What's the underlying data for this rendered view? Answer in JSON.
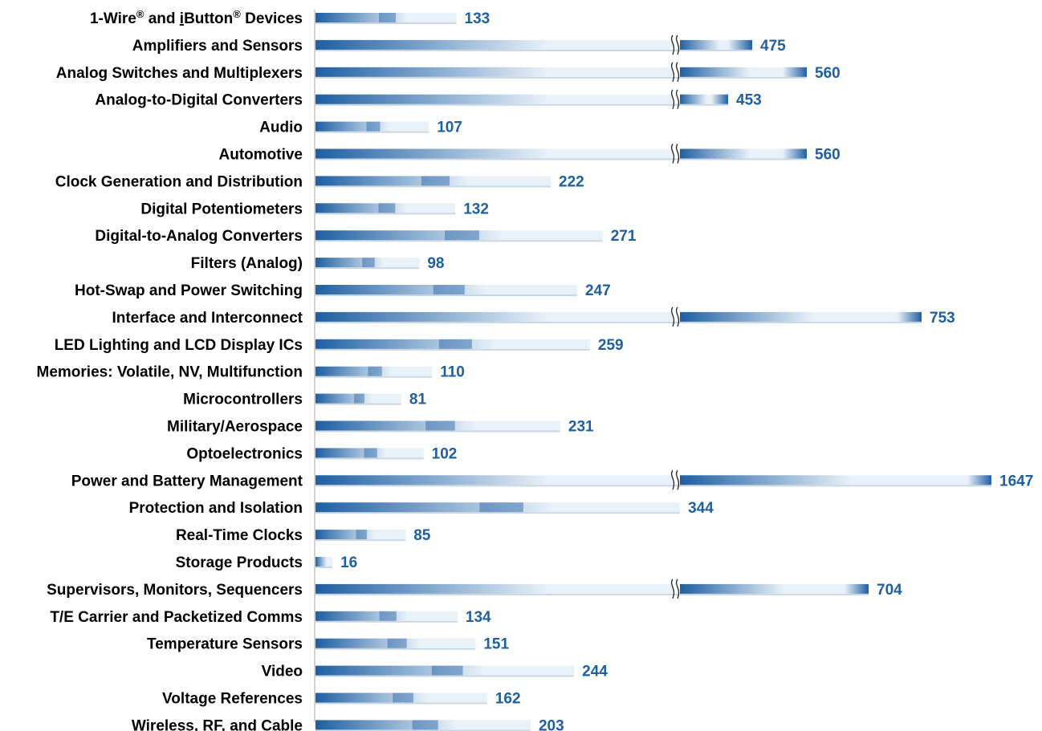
{
  "colors": {
    "bar_dark": "#1e5fa2",
    "bar_light": "#e9f1f9",
    "value_text": "#1d5fa0",
    "label_text": "#000000",
    "axis": "#aaaaaa"
  },
  "chart_data": {
    "type": "bar",
    "orientation": "horizontal",
    "axis_break": true,
    "axis_break_marker": "double-wavy-lines",
    "grid": false,
    "legend": "none",
    "categories": [
      {
        "label": "1-Wire",
        "label_suffix": " Devices",
        "label_mid": " and ",
        "label_brand2_initial": "i",
        "label_brand2_rest": "Button",
        "reg_mark": "®"
      },
      {
        "label": "Amplifiers and Sensors"
      },
      {
        "label": "Analog Switches and Multiplexers"
      },
      {
        "label": "Analog-to-Digital Converters"
      },
      {
        "label": "Audio"
      },
      {
        "label": "Automotive"
      },
      {
        "label": "Clock Generation and Distribution"
      },
      {
        "label": "Digital Potentiometers"
      },
      {
        "label": "Digital-to-Analog Converters"
      },
      {
        "label": "Filters (Analog)"
      },
      {
        "label": "Hot-Swap and Power Switching"
      },
      {
        "label": "Interface and Interconnect"
      },
      {
        "label": "LED Lighting and LCD Display ICs"
      },
      {
        "label": "Memories: Volatile, NV, Multifunction"
      },
      {
        "label": "Microcontrollers"
      },
      {
        "label": "Military/Aerospace"
      },
      {
        "label": "Optoelectronics"
      },
      {
        "label": "Power and Battery Management"
      },
      {
        "label": "Protection and Isolation"
      },
      {
        "label": "Real-Time Clocks"
      },
      {
        "label": "Storage Products"
      },
      {
        "label": "Supervisors, Monitors, Sequencers"
      },
      {
        "label": "T/E Carrier and Packetized Comms"
      },
      {
        "label": "Temperature Sensors"
      },
      {
        "label": "Video"
      },
      {
        "label": "Voltage References"
      },
      {
        "label": "Wireless, RF, and Cable"
      }
    ],
    "values": [
      133,
      475,
      560,
      453,
      107,
      560,
      222,
      132,
      271,
      98,
      247,
      753,
      259,
      110,
      81,
      231,
      102,
      1647,
      344,
      85,
      16,
      704,
      134,
      151,
      244,
      162,
      203
    ],
    "value_labels": [
      "133",
      "475",
      "560",
      "453",
      "107",
      "560",
      "222",
      "132",
      "271",
      "98",
      "247",
      "753",
      "259",
      "110",
      "81",
      "231",
      "102",
      "1647",
      "344",
      "85",
      "16",
      "704",
      "134",
      "151",
      "244",
      "162",
      "203"
    ],
    "scale_break_at": 350
  }
}
